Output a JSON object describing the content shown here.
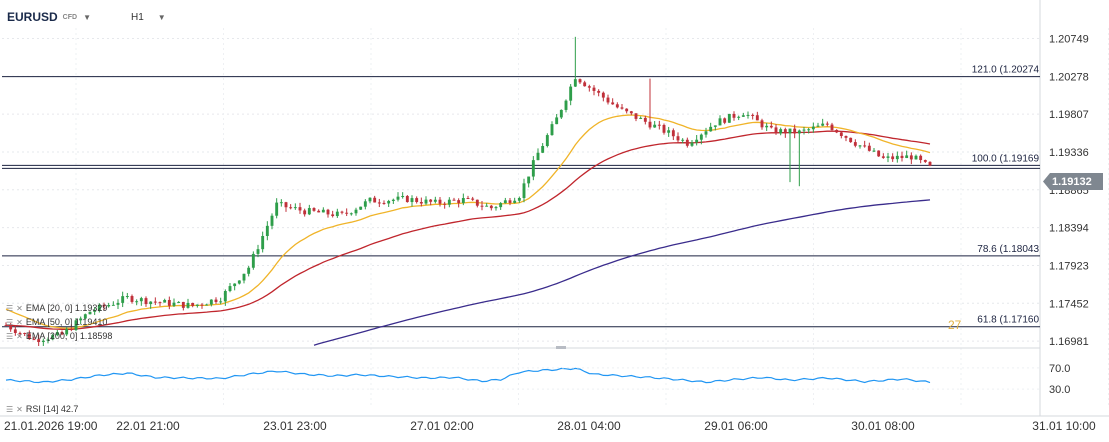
{
  "header": {
    "symbol": "EURUSD",
    "instrument_type": "CFD",
    "timeframe": "H1"
  },
  "legend": {
    "ema20": "EMA [20, 0] 1.19329",
    "ema50": "EMA [50, 0] 1.19410",
    "ema200": "EMA [200, 0] 1.18598",
    "rsi": "RSI [14] 42.7"
  },
  "icons": [
    "eye-icon",
    "close-icon",
    "dropdown-caret-icon"
  ],
  "current_price": "1.19132",
  "fib_overlay_text": "27",
  "colors": {
    "up": "#2e9e4a",
    "down": "#c0303a",
    "ema20": "#f0b429",
    "ema50": "#c0262d",
    "ema200": "#3a2c8c",
    "rsi": "#2196f3",
    "level": "#1c2340",
    "price_tag": "#7f8790"
  },
  "chart_data": [
    {
      "type": "candlestick",
      "yaxis_ticks": [
        "1.20749",
        "1.20278",
        "1.19807",
        "1.19336",
        "1.18865",
        "1.18394",
        "1.17923",
        "1.17452",
        "1.16981"
      ],
      "ylim": [
        1.1692,
        1.2088
      ],
      "xaxis_ticks": [
        "21.01.2026 19:00",
        "22.01 21:00",
        "23.01 23:00",
        "27.01 02:00",
        "28.01 04:00",
        "29.01 06:00",
        "30.01 08:00",
        "31.01 10:00"
      ],
      "fib_levels": [
        {
          "label": "121.0 (1.20274",
          "value": 1.20274
        },
        {
          "label": "100.0 (1.19169",
          "value": 1.19169
        },
        {
          "label": "78.6 (1.18043",
          "value": 1.18043
        },
        {
          "label": "61.8 (1.17160",
          "value": 1.1716
        }
      ],
      "current_price": 1.19132,
      "series": [
        {
          "name": "EMA [20, 0]",
          "last": 1.19329
        },
        {
          "name": "EMA [50, 0]",
          "last": 1.1941
        },
        {
          "name": "EMA [200, 0]",
          "last": 1.18598
        }
      ],
      "path_knots": [
        [
          0,
          1.1718
        ],
        [
          6,
          1.17
        ],
        [
          12,
          1.1706
        ],
        [
          18,
          1.1735
        ],
        [
          26,
          1.1752
        ],
        [
          32,
          1.1747
        ],
        [
          40,
          1.1742
        ],
        [
          46,
          1.1752
        ],
        [
          52,
          1.179
        ],
        [
          58,
          1.1868
        ],
        [
          64,
          1.186
        ],
        [
          72,
          1.1855
        ],
        [
          78,
          1.1873
        ],
        [
          86,
          1.1875
        ],
        [
          92,
          1.187
        ],
        [
          98,
          1.1874
        ],
        [
          104,
          1.1864
        ],
        [
          110,
          1.188
        ],
        [
          114,
          1.1932
        ],
        [
          118,
          1.1975
        ],
        [
          122,
          1.2028
        ],
        [
          126,
          1.201
        ],
        [
          132,
          1.1985
        ],
        [
          140,
          1.1963
        ],
        [
          146,
          1.1945
        ],
        [
          152,
          1.197
        ],
        [
          158,
          1.1983
        ],
        [
          164,
          1.196
        ],
        [
          170,
          1.1958
        ],
        [
          176,
          1.1968
        ],
        [
          182,
          1.1945
        ],
        [
          188,
          1.1925
        ],
        [
          194,
          1.1928
        ],
        [
          198,
          1.1914
        ]
      ],
      "ema_start": {
        "ema20": 1.174,
        "ema50": 1.1718,
        "ema200": 1.162
      }
    },
    {
      "type": "line",
      "name": "RSI [14]",
      "last": 42.7,
      "yaxis_ticks": [
        "70.0",
        "30.0"
      ],
      "ylim": [
        0,
        100
      ],
      "knots": [
        [
          0,
          47
        ],
        [
          8,
          43
        ],
        [
          14,
          48
        ],
        [
          20,
          56
        ],
        [
          26,
          60
        ],
        [
          32,
          52
        ],
        [
          38,
          51
        ],
        [
          46,
          50
        ],
        [
          52,
          58
        ],
        [
          58,
          64
        ],
        [
          64,
          58
        ],
        [
          70,
          55
        ],
        [
          76,
          57
        ],
        [
          82,
          54
        ],
        [
          90,
          51
        ],
        [
          96,
          52
        ],
        [
          102,
          45
        ],
        [
          106,
          48
        ],
        [
          110,
          62
        ],
        [
          114,
          65
        ],
        [
          118,
          67
        ],
        [
          122,
          69
        ],
        [
          126,
          58
        ],
        [
          132,
          55
        ],
        [
          138,
          52
        ],
        [
          144,
          48
        ],
        [
          150,
          43
        ],
        [
          156,
          48
        ],
        [
          162,
          52
        ],
        [
          168,
          47
        ],
        [
          176,
          51
        ],
        [
          184,
          44
        ],
        [
          192,
          49
        ],
        [
          198,
          43
        ]
      ]
    }
  ]
}
